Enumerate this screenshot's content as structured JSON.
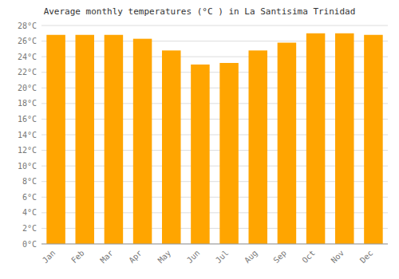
{
  "chart_data": {
    "type": "bar",
    "title": "Average monthly temperatures (°C ) in La Santisima Trinidad",
    "categories": [
      "Jan",
      "Feb",
      "Mar",
      "Apr",
      "May",
      "Jun",
      "Jul",
      "Aug",
      "Sep",
      "Oct",
      "Nov",
      "Dec"
    ],
    "values": [
      26.8,
      26.8,
      26.8,
      26.3,
      24.8,
      23.0,
      23.2,
      24.8,
      25.8,
      27.0,
      27.0,
      26.8
    ],
    "color": "#FFA500",
    "ylim": [
      0,
      28
    ],
    "yticks": [
      {
        "value": 0,
        "label": "0°C"
      },
      {
        "value": 2,
        "label": "2°C"
      },
      {
        "value": 4,
        "label": "4°C"
      },
      {
        "value": 6,
        "label": "6°C"
      },
      {
        "value": 8,
        "label": "8°C"
      },
      {
        "value": 10,
        "label": "10°C"
      },
      {
        "value": 12,
        "label": "12°C"
      },
      {
        "value": 14,
        "label": "14°C"
      },
      {
        "value": 16,
        "label": "16°C"
      },
      {
        "value": 18,
        "label": "18°C"
      },
      {
        "value": 20,
        "label": "20°C"
      },
      {
        "value": 22,
        "label": "22°C"
      },
      {
        "value": 24,
        "label": "24°C"
      },
      {
        "value": 26,
        "label": "26°C"
      },
      {
        "value": 28,
        "label": "28°C"
      }
    ],
    "grid": true
  }
}
